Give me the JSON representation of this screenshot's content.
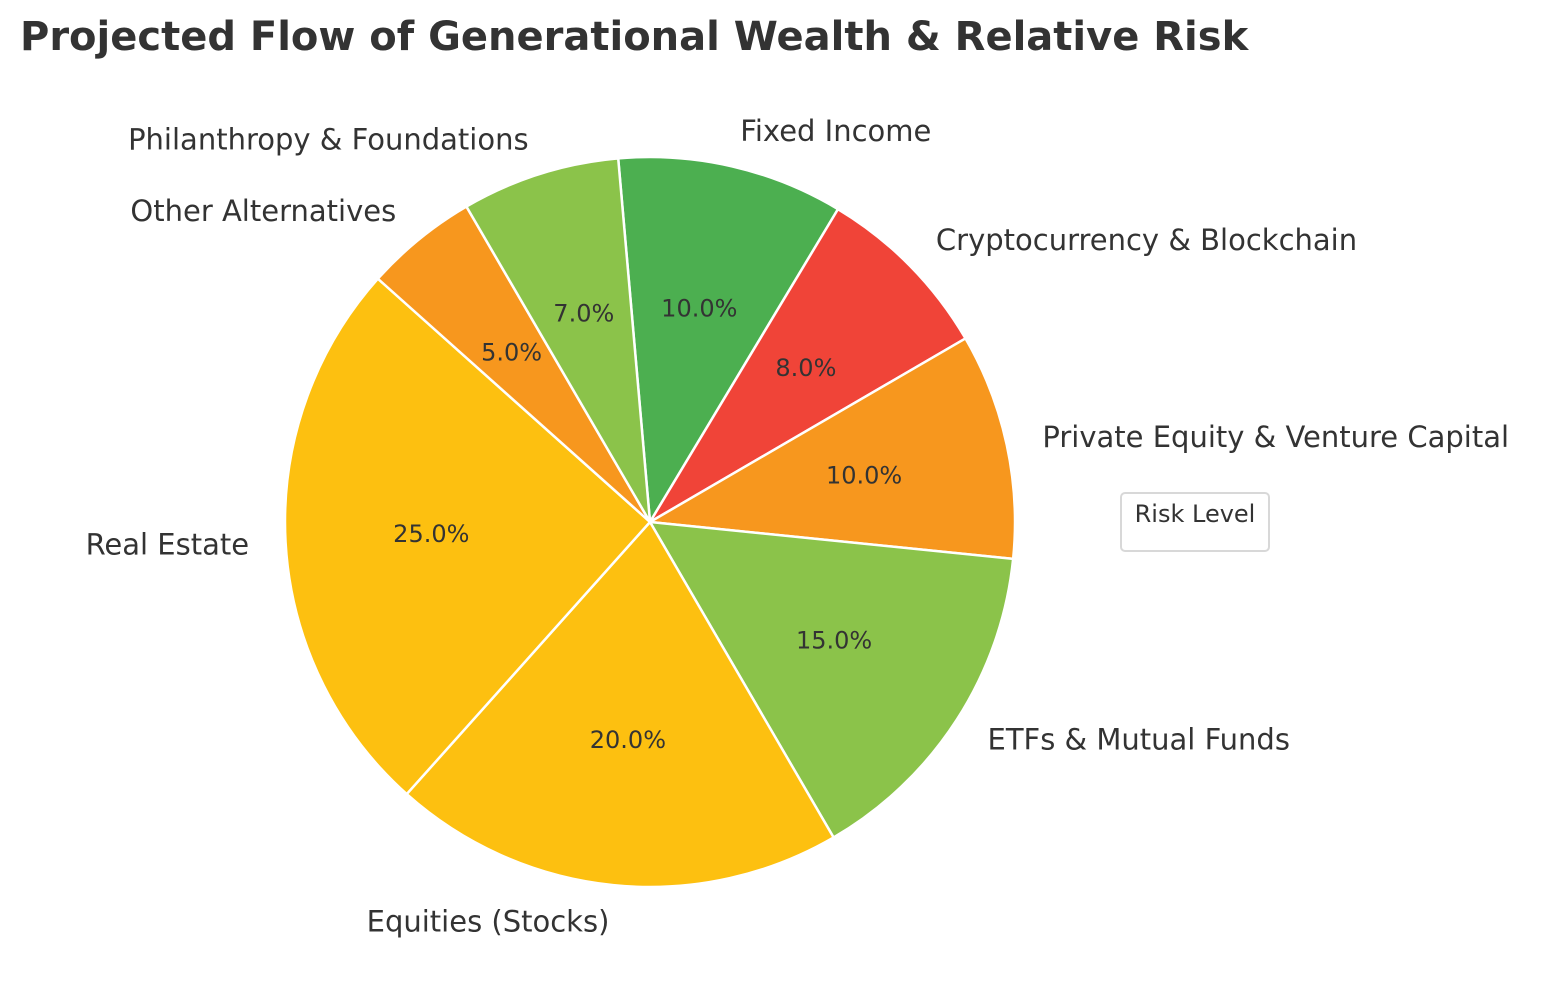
{
  "chart_data": {
    "type": "pie",
    "title": "Projected Flow of Generational Wealth & Relative Risk",
    "start_angle_deg": 95,
    "direction": "clockwise",
    "slices": [
      {
        "label": "Fixed Income",
        "value": 10.0,
        "pct_label": "10.0%",
        "color": "#4CAF50"
      },
      {
        "label": "Cryptocurrency & Blockchain",
        "value": 8.0,
        "pct_label": "8.0%",
        "color": "#F04438"
      },
      {
        "label": "Private Equity & Venture Capital",
        "value": 10.0,
        "pct_label": "10.0%",
        "color": "#F7971E"
      },
      {
        "label": "ETFs & Mutual Funds",
        "value": 15.0,
        "pct_label": "15.0%",
        "color": "#8BC34A"
      },
      {
        "label": "Equities (Stocks)",
        "value": 20.0,
        "pct_label": "20.0%",
        "color": "#FDC010"
      },
      {
        "label": "Real Estate",
        "value": 25.0,
        "pct_label": "25.0%",
        "color": "#FDC010"
      },
      {
        "label": "Other Alternatives",
        "value": 5.0,
        "pct_label": "5.0%",
        "color": "#F7971E"
      },
      {
        "label": "Philanthropy & Foundations",
        "value": 7.0,
        "pct_label": "7.0%",
        "color": "#8BC34A"
      }
    ],
    "legend": {
      "title": "Risk Level",
      "placement": "right"
    }
  }
}
